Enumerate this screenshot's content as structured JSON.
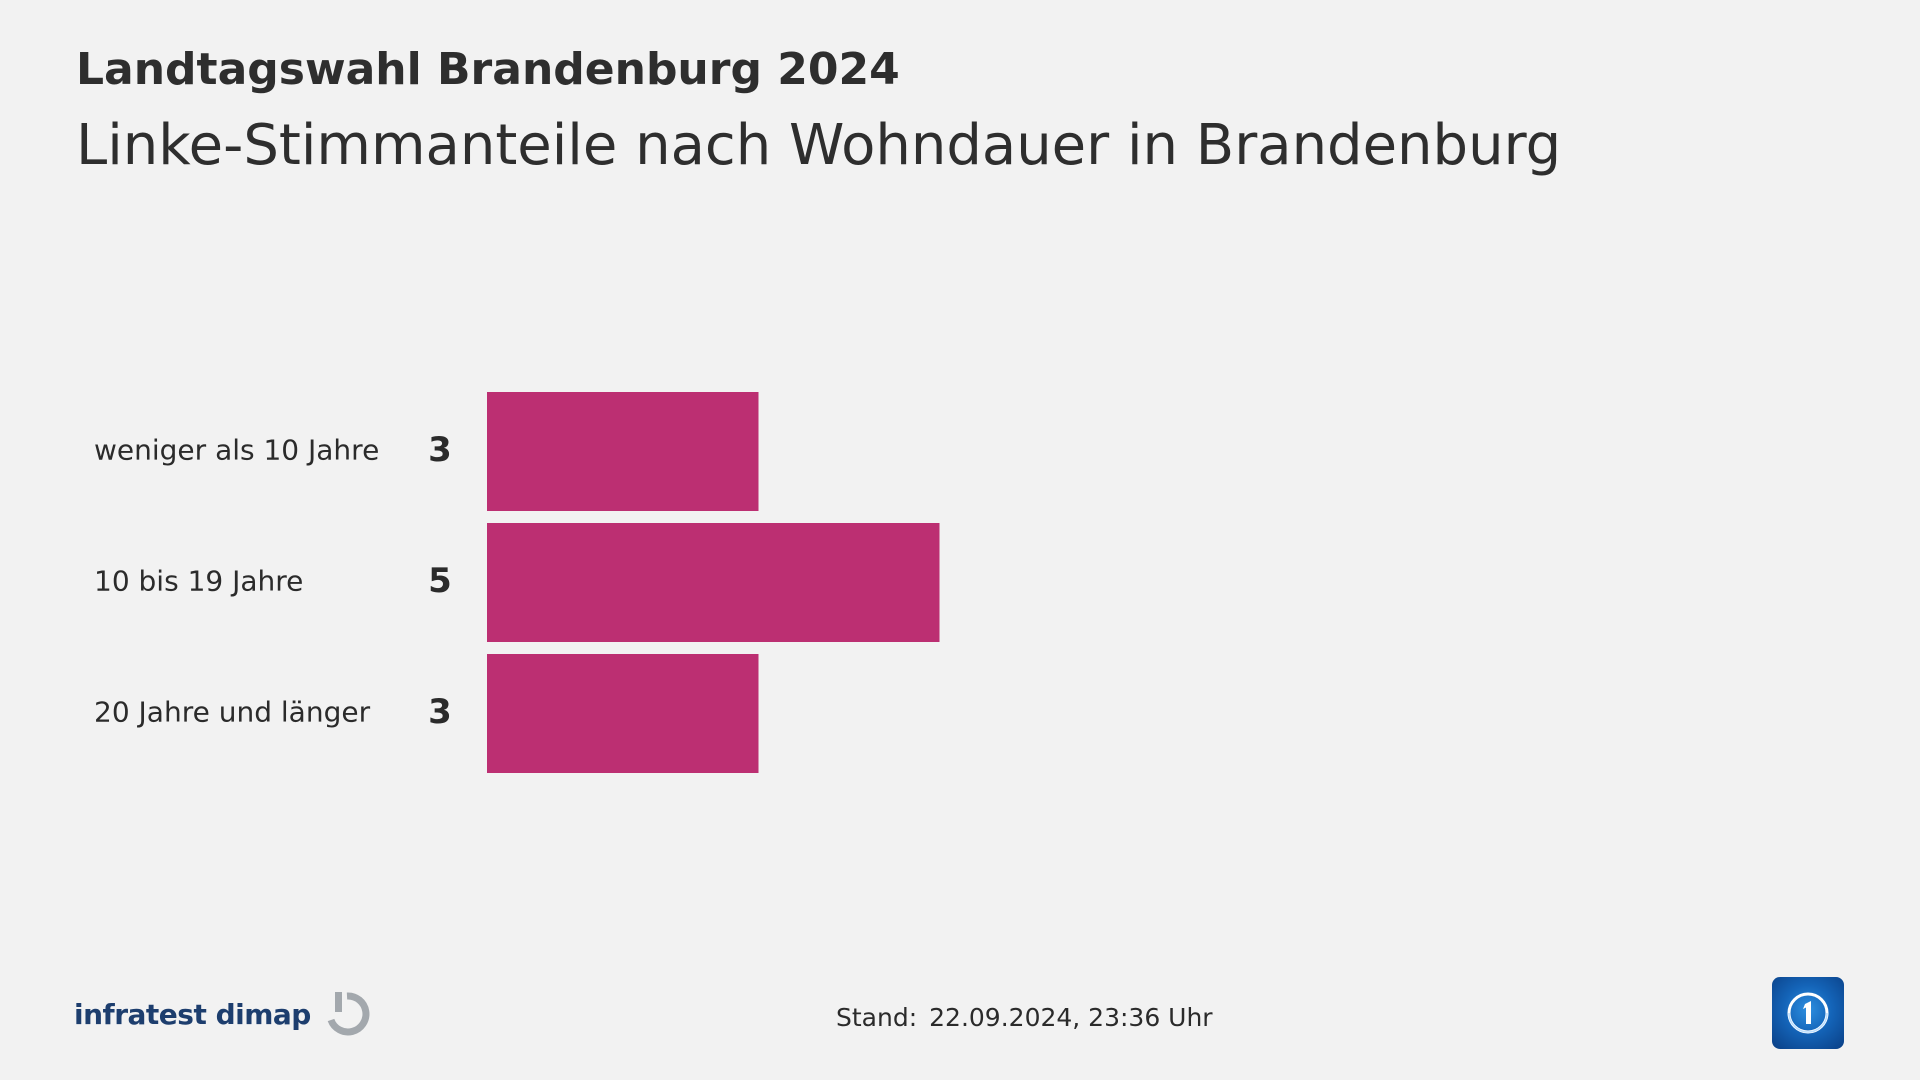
{
  "header": {
    "supertitle": "Landtagswahl Brandenburg 2024",
    "title": "Linke-Stimmanteile nach Wohndauer in Brandenburg"
  },
  "chart_data": {
    "type": "bar",
    "orientation": "horizontal",
    "categories": [
      "weniger als 10 Jahre",
      "10 bis 19 Jahre",
      "20 Jahre und länger"
    ],
    "values": [
      3,
      5,
      3
    ],
    "value_labels": [
      "3",
      "5",
      "3"
    ],
    "bar_color": "#bc2f72",
    "grid": false,
    "legend": "none"
  },
  "footer": {
    "source_logo": "infratest dimap",
    "source_logo_icon": "infratest-dimap-logo-icon",
    "stand_label": "Stand:",
    "stand_value": "22.09.2024, 23:36 Uhr",
    "brand_icon": "tagesschau-logo-icon"
  },
  "colors": {
    "background": "#f2f2f2",
    "text": "#2b2b2b",
    "bar": "#bc2f72",
    "logo_blue": "#1d3e6e",
    "logo_grey": "#a3a8ad"
  }
}
